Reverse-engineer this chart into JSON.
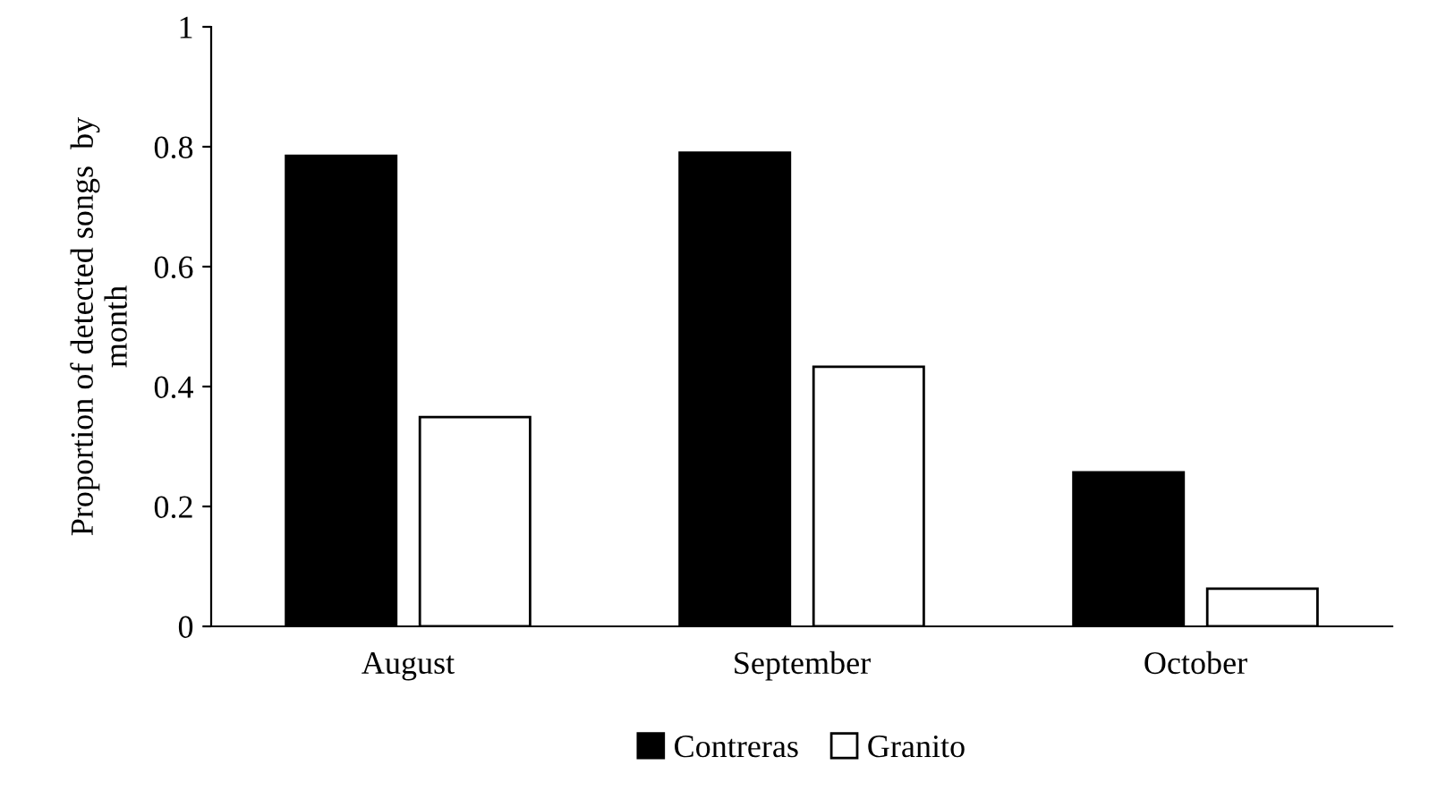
{
  "chart_data": {
    "type": "bar",
    "ylabel": "Proportion of detected songs  by\nmonth",
    "categories": [
      "August",
      "September",
      "October"
    ],
    "series": [
      {
        "name": "Contreras",
        "color": "#000000",
        "values": [
          0.785,
          0.79,
          0.257
        ]
      },
      {
        "name": "Granito",
        "color": "#ffffff",
        "values": [
          0.349,
          0.433,
          0.063
        ]
      }
    ],
    "ylim": [
      0,
      1
    ],
    "yticks": [
      0,
      0.2,
      0.4,
      0.6,
      0.8,
      1
    ],
    "grid": false,
    "legend": "bottom"
  }
}
